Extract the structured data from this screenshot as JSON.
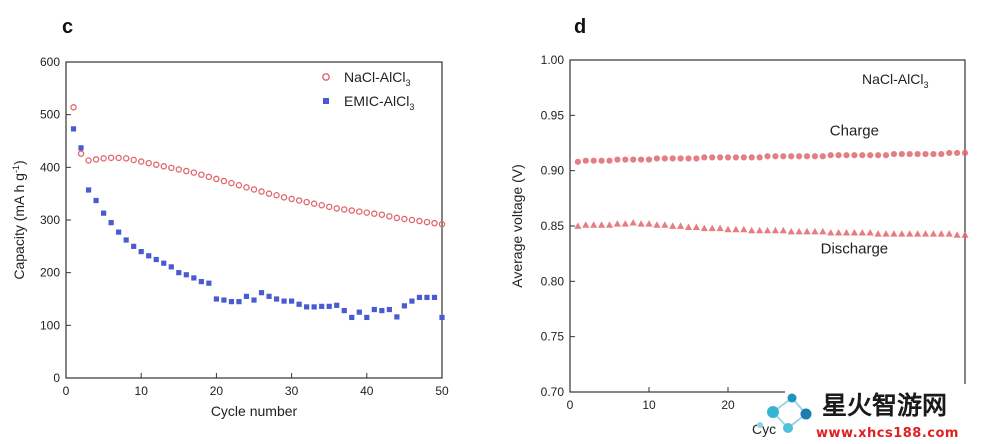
{
  "chart_data": [
    {
      "panel": "c",
      "type": "scatter",
      "xlabel": "Cycle number",
      "ylabel": "Capacity (mA h g",
      "ylabel_sup": "-1",
      "ylabel_end": ")",
      "xlim": [
        0,
        50
      ],
      "ylim": [
        0,
        600
      ],
      "xticks": [
        0,
        10,
        20,
        30,
        40,
        50
      ],
      "yticks": [
        0,
        100,
        200,
        300,
        400,
        500,
        600
      ],
      "legend": "top-right",
      "series": [
        {
          "name": "NaCl-AlCl",
          "name_sub": "3",
          "marker": "circle",
          "color": "#e0666e",
          "x": [
            1,
            2,
            3,
            4,
            5,
            6,
            7,
            8,
            9,
            10,
            11,
            12,
            13,
            14,
            15,
            16,
            17,
            18,
            19,
            20,
            21,
            22,
            23,
            24,
            25,
            26,
            27,
            28,
            29,
            30,
            31,
            32,
            33,
            34,
            35,
            36,
            37,
            38,
            39,
            40,
            41,
            42,
            43,
            44,
            45,
            46,
            47,
            48,
            49,
            50
          ],
          "y": [
            514,
            426,
            413,
            415,
            417,
            418,
            418,
            417,
            414,
            411,
            408,
            405,
            402,
            399,
            396,
            393,
            390,
            386,
            382,
            378,
            374,
            370,
            366,
            362,
            358,
            354,
            350,
            347,
            343,
            340,
            337,
            334,
            331,
            328,
            325,
            322,
            320,
            318,
            316,
            314,
            312,
            310,
            307,
            304,
            302,
            300,
            298,
            296,
            294,
            292
          ]
        },
        {
          "name": "EMIC-AlCl",
          "name_sub": "3",
          "marker": "square",
          "color": "#4a5bd0",
          "x": [
            1,
            2,
            3,
            4,
            5,
            6,
            7,
            8,
            9,
            10,
            11,
            12,
            13,
            14,
            15,
            16,
            17,
            18,
            19,
            20,
            21,
            22,
            23,
            24,
            25,
            26,
            27,
            28,
            29,
            30,
            31,
            32,
            33,
            34,
            35,
            36,
            37,
            38,
            39,
            40,
            41,
            42,
            43,
            44,
            45,
            46,
            47,
            48,
            49,
            50
          ],
          "y": [
            473,
            437,
            357,
            337,
            313,
            295,
            277,
            262,
            250,
            240,
            232,
            225,
            218,
            211,
            200,
            196,
            190,
            183,
            180,
            150,
            148,
            145,
            145,
            155,
            148,
            162,
            155,
            150,
            146,
            146,
            140,
            135,
            135,
            136,
            136,
            138,
            128,
            115,
            125,
            115,
            130,
            128,
            130,
            116,
            137,
            146,
            153,
            153,
            153,
            115
          ]
        }
      ]
    },
    {
      "panel": "d",
      "type": "scatter",
      "xlabel": "Cycle number",
      "ylabel": "Average voltage (V)",
      "xlim": [
        0,
        50
      ],
      "ylim": [
        0.7,
        1.0
      ],
      "xticks": [
        0,
        10,
        20
      ],
      "yticks": [
        0.7,
        0.75,
        0.8,
        0.85,
        0.9,
        0.95,
        1.0
      ],
      "ytick_labels": [
        "0.70",
        "0.75",
        "0.80",
        "0.85",
        "0.90",
        "0.95",
        "1.00"
      ],
      "title_text": "NaCl-AlCl",
      "title_sub": "3",
      "annotations": [
        {
          "text": "Charge",
          "x": 36,
          "y": 0.932
        },
        {
          "text": "Discharge",
          "x": 36,
          "y": 0.825
        }
      ],
      "series": [
        {
          "name": "Charge",
          "marker": "circle",
          "color": "#e0666e",
          "x": [
            1,
            2,
            3,
            4,
            5,
            6,
            7,
            8,
            9,
            10,
            11,
            12,
            13,
            14,
            15,
            16,
            17,
            18,
            19,
            20,
            21,
            22,
            23,
            24,
            25,
            26,
            27,
            28,
            29,
            30,
            31,
            32,
            33,
            34,
            35,
            36,
            37,
            38,
            39,
            40,
            41,
            42,
            43,
            44,
            45,
            46,
            47,
            48,
            49,
            50
          ],
          "y": [
            0.908,
            0.909,
            0.909,
            0.909,
            0.909,
            0.91,
            0.91,
            0.91,
            0.91,
            0.91,
            0.911,
            0.911,
            0.911,
            0.911,
            0.911,
            0.911,
            0.912,
            0.912,
            0.912,
            0.912,
            0.912,
            0.912,
            0.912,
            0.912,
            0.913,
            0.913,
            0.913,
            0.913,
            0.913,
            0.913,
            0.913,
            0.913,
            0.914,
            0.914,
            0.914,
            0.914,
            0.914,
            0.914,
            0.914,
            0.914,
            0.915,
            0.915,
            0.915,
            0.915,
            0.915,
            0.915,
            0.915,
            0.916,
            0.916,
            0.916
          ]
        },
        {
          "name": "Discharge",
          "marker": "triangle",
          "color": "#e0666e",
          "x": [
            1,
            2,
            3,
            4,
            5,
            6,
            7,
            8,
            9,
            10,
            11,
            12,
            13,
            14,
            15,
            16,
            17,
            18,
            19,
            20,
            21,
            22,
            23,
            24,
            25,
            26,
            27,
            28,
            29,
            30,
            31,
            32,
            33,
            34,
            35,
            36,
            37,
            38,
            39,
            40,
            41,
            42,
            43,
            44,
            45,
            46,
            47,
            48,
            49,
            50
          ],
          "y": [
            0.85,
            0.851,
            0.851,
            0.851,
            0.851,
            0.852,
            0.852,
            0.853,
            0.852,
            0.852,
            0.851,
            0.851,
            0.85,
            0.85,
            0.849,
            0.849,
            0.848,
            0.848,
            0.848,
            0.847,
            0.847,
            0.847,
            0.846,
            0.846,
            0.846,
            0.846,
            0.846,
            0.845,
            0.845,
            0.845,
            0.845,
            0.845,
            0.844,
            0.844,
            0.844,
            0.844,
            0.844,
            0.844,
            0.843,
            0.843,
            0.843,
            0.843,
            0.843,
            0.843,
            0.843,
            0.843,
            0.843,
            0.843,
            0.842,
            0.842
          ]
        }
      ]
    }
  ],
  "watermark": {
    "cn_text": "星火智游网",
    "url_text": "www.xhcs188.com",
    "partial_axis_text": "Cyc"
  }
}
